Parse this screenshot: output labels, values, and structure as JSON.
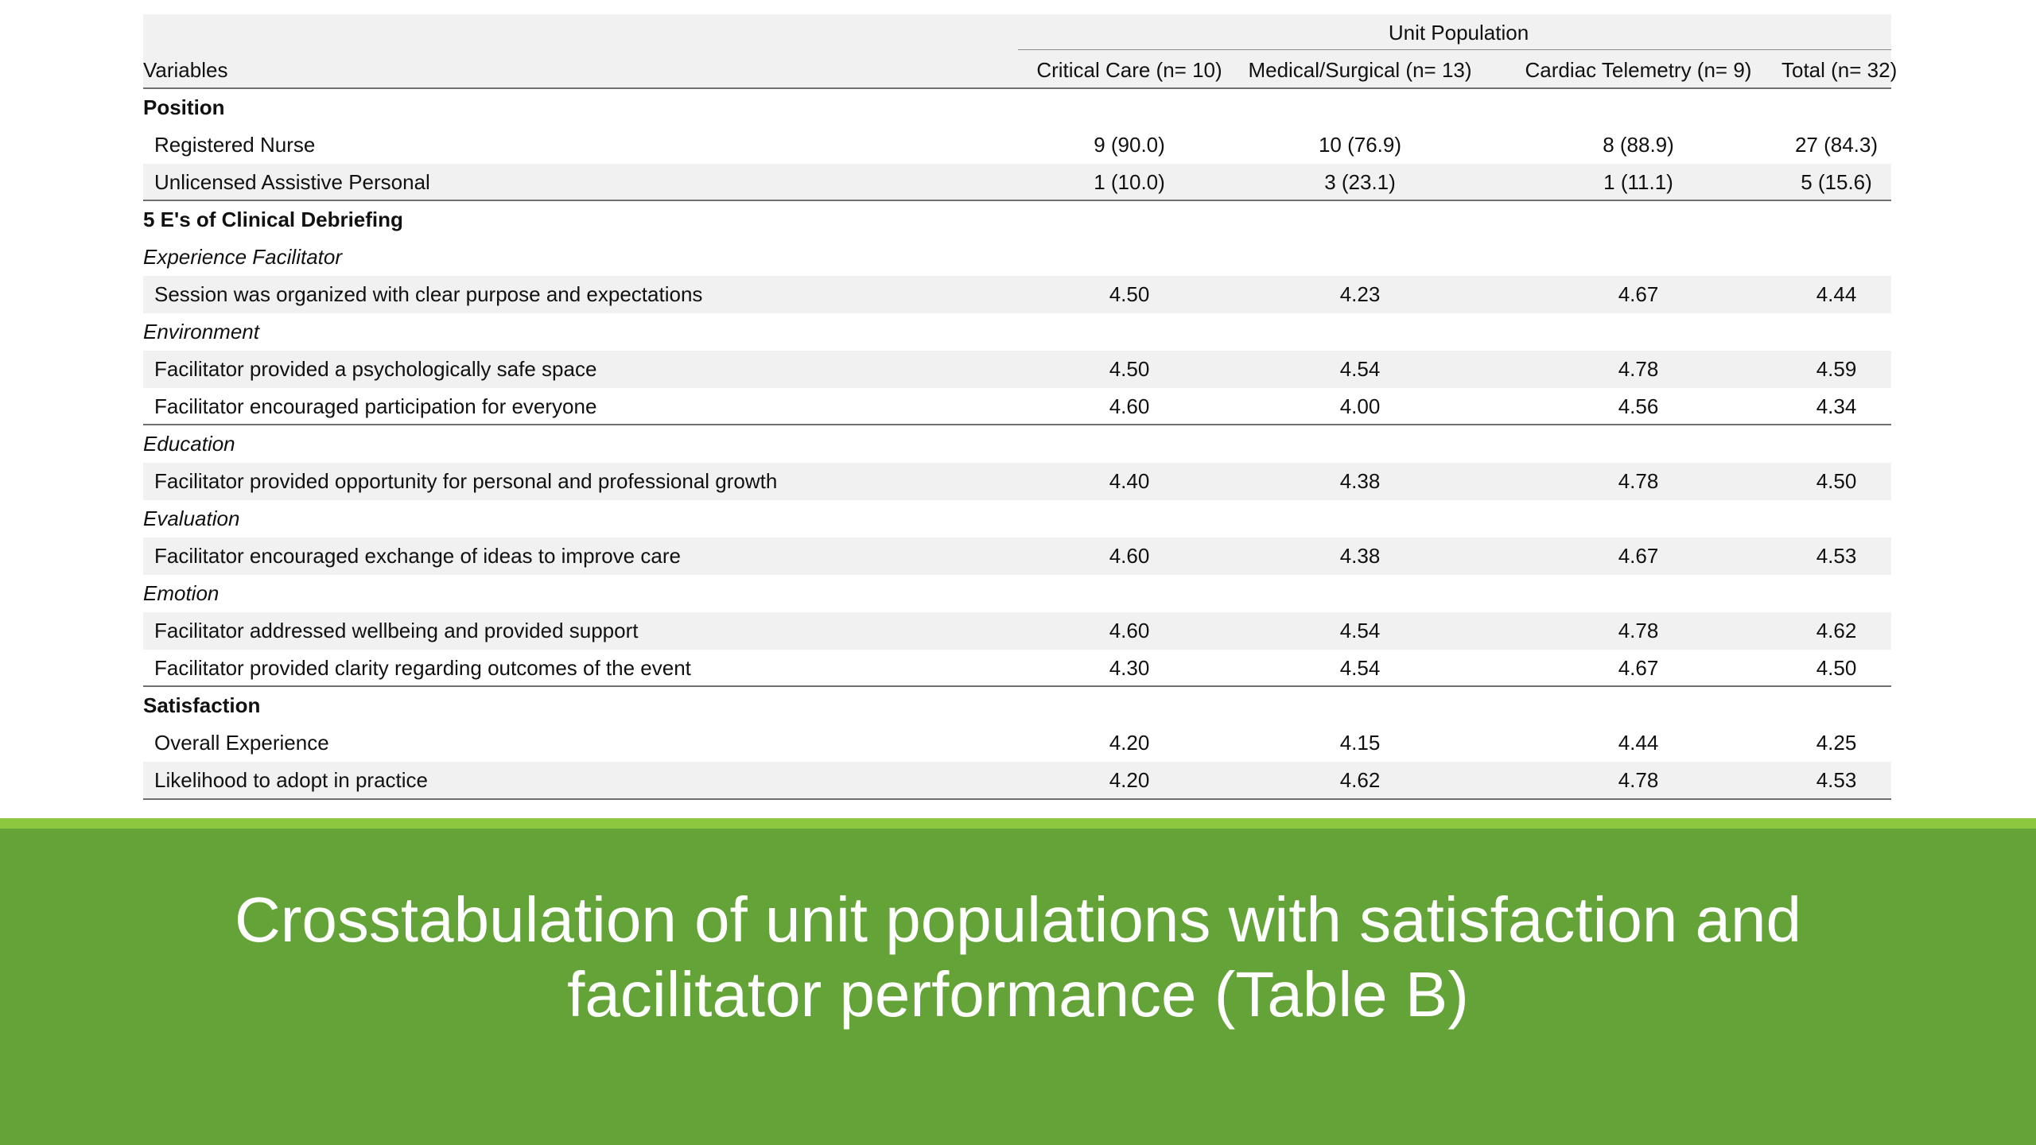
{
  "slide": {
    "title_line1": "Crosstabulation of unit populations with satisfaction and",
    "title_line2": "facilitator performance (Table B)",
    "colors": {
      "band": "#64a338",
      "accent": "#8dc63f",
      "row_shade": "#f1f1f1"
    }
  },
  "table": {
    "group_header": "Unit Population",
    "columns": {
      "variables": "Variables",
      "critical_care": "Critical Care (n= 10)",
      "med_surg": "Medical/Surgical (n= 13)",
      "cardiac": "Cardiac Telemetry (n= 9)",
      "total": "Total (n= 32)"
    },
    "rows": [
      {
        "label": "Position",
        "style": "section",
        "values": [
          "",
          "",
          "",
          ""
        ]
      },
      {
        "label": "Registered Nurse",
        "style": "item",
        "values": [
          "9 (90.0)",
          "10 (76.9)",
          "8 (88.9)",
          "27 (84.3)"
        ]
      },
      {
        "label": "Unlicensed Assistive Personal",
        "style": "item",
        "values": [
          "1 (10.0)",
          "3 (23.1)",
          "1 (11.1)",
          "5 (15.6)"
        ]
      },
      {
        "label": "5 E's of Clinical Debriefing",
        "style": "section",
        "values": [
          "",
          "",
          "",
          ""
        ]
      },
      {
        "label": "Experience Facilitator",
        "style": "subsection",
        "values": [
          "",
          "",
          "",
          ""
        ]
      },
      {
        "label": "Session was organized with clear purpose and expectations",
        "style": "item",
        "values": [
          "4.50",
          "4.23",
          "4.67",
          "4.44"
        ]
      },
      {
        "label": "Environment",
        "style": "subsection",
        "values": [
          "",
          "",
          "",
          ""
        ]
      },
      {
        "label": "Facilitator provided a psychologically safe space",
        "style": "item",
        "values": [
          "4.50",
          "4.54",
          "4.78",
          "4.59"
        ]
      },
      {
        "label": "Facilitator encouraged participation for everyone",
        "style": "item",
        "values": [
          "4.60",
          "4.00",
          "4.56",
          "4.34"
        ]
      },
      {
        "label": "Education",
        "style": "subsection",
        "values": [
          "",
          "",
          "",
          ""
        ]
      },
      {
        "label": "Facilitator provided opportunity for personal and professional growth",
        "style": "item",
        "values": [
          "4.40",
          "4.38",
          "4.78",
          "4.50"
        ]
      },
      {
        "label": "Evaluation",
        "style": "subsection",
        "values": [
          "",
          "",
          "",
          ""
        ]
      },
      {
        "label": "Facilitator encouraged exchange of ideas to improve care",
        "style": "item",
        "values": [
          "4.60",
          "4.38",
          "4.67",
          "4.53"
        ]
      },
      {
        "label": "Emotion",
        "style": "subsection",
        "values": [
          "",
          "",
          "",
          ""
        ]
      },
      {
        "label": "Facilitator addressed wellbeing and provided support",
        "style": "item",
        "values": [
          "4.60",
          "4.54",
          "4.78",
          "4.62"
        ]
      },
      {
        "label": "Facilitator provided clarity regarding outcomes of the event",
        "style": "item",
        "values": [
          "4.30",
          "4.54",
          "4.67",
          "4.50"
        ]
      },
      {
        "label": "Satisfaction",
        "style": "section",
        "values": [
          "",
          "",
          "",
          ""
        ]
      },
      {
        "label": "Overall Experience",
        "style": "item",
        "values": [
          "4.20",
          "4.15",
          "4.44",
          "4.25"
        ]
      },
      {
        "label": "Likelihood to adopt in practice",
        "style": "item",
        "values": [
          "4.20",
          "4.62",
          "4.78",
          "4.53"
        ]
      }
    ]
  }
}
